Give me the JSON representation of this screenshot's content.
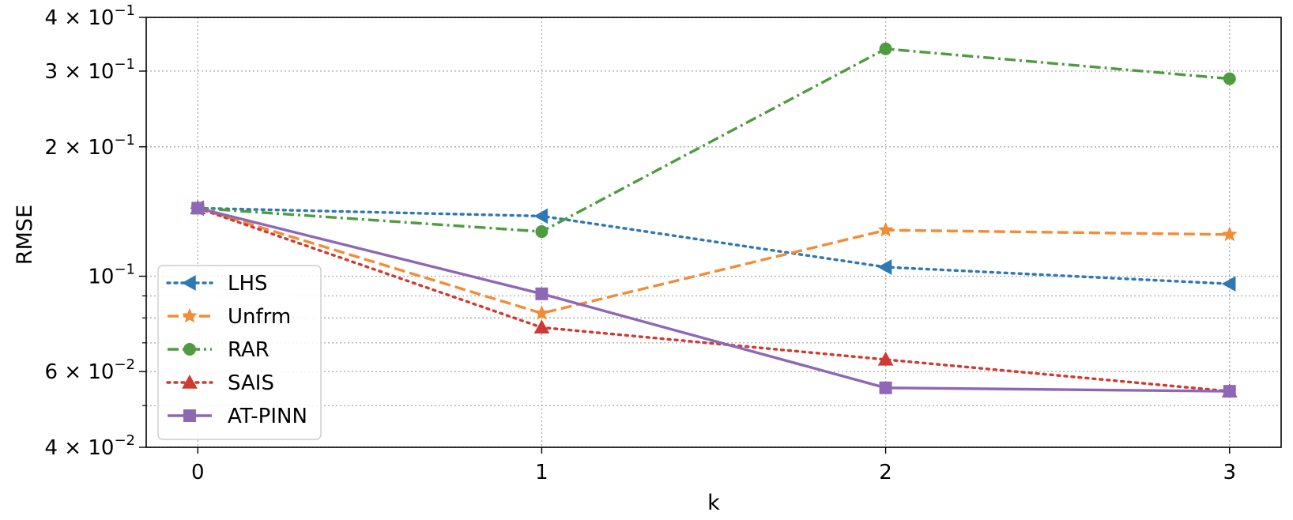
{
  "chart_data": {
    "type": "line",
    "xlabel": "k",
    "ylabel": "RMSE",
    "x": [
      0,
      1,
      2,
      3
    ],
    "xticks": [
      "0",
      "1",
      "2",
      "3"
    ],
    "xlim": [
      -0.15,
      3.15
    ],
    "yscale": "log",
    "ylim": [
      0.04,
      0.4
    ],
    "yticks": [
      {
        "value": 0.04,
        "mant": "4",
        "exp": "−2"
      },
      {
        "value": 0.06,
        "mant": "6",
        "exp": "−2"
      },
      {
        "value": 0.1,
        "mant": "",
        "exp": "−1"
      },
      {
        "value": 0.2,
        "mant": "2",
        "exp": "−1"
      },
      {
        "value": 0.3,
        "mant": "3",
        "exp": "−1"
      },
      {
        "value": 0.4,
        "mant": "4",
        "exp": "−1"
      }
    ],
    "minor_yticks": [
      0.05,
      0.07,
      0.08,
      0.09
    ],
    "grid": true,
    "legend_position": "lower-left",
    "series": [
      {
        "name": "LHS",
        "values": [
          0.144,
          0.138,
          0.105,
          0.096
        ],
        "color": "#2f78b5",
        "dash": "dotted",
        "marker": "triangle-left"
      },
      {
        "name": "Unfrm",
        "values": [
          0.144,
          0.082,
          0.128,
          0.125
        ],
        "color": "#f28c35",
        "dash": "dashed",
        "marker": "star"
      },
      {
        "name": "RAR",
        "values": [
          0.144,
          0.127,
          0.338,
          0.288
        ],
        "color": "#4e9c3f",
        "dash": "dashdot",
        "marker": "circle"
      },
      {
        "name": "SAIS",
        "values": [
          0.144,
          0.076,
          0.064,
          0.054
        ],
        "color": "#cf3b33",
        "dash": "dotted",
        "marker": "triangle-up"
      },
      {
        "name": "AT-PINN",
        "values": [
          0.144,
          0.091,
          0.055,
          0.054
        ],
        "color": "#8e68b5",
        "dash": "solid",
        "marker": "square"
      }
    ]
  }
}
